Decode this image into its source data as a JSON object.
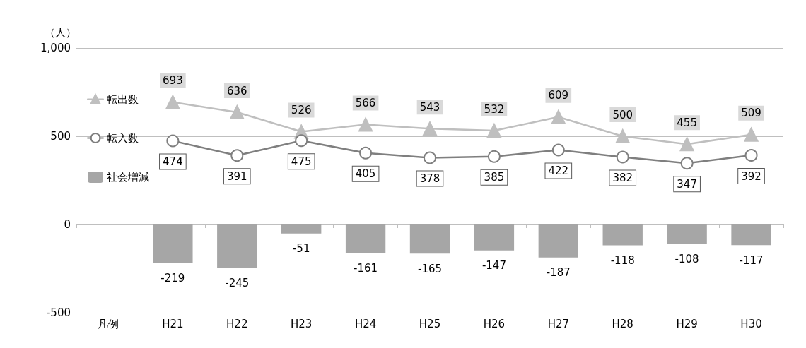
{
  "chart_data": {
    "type": "line",
    "ylabel": "（人）",
    "categories": [
      "凡例",
      "H21",
      "H22",
      "H23",
      "H24",
      "H25",
      "H26",
      "H27",
      "H28",
      "H29",
      "H30"
    ],
    "series": [
      {
        "name": "転出数",
        "marker": "triangle",
        "color": "#bfbfbf",
        "values": [
          null,
          693,
          636,
          526,
          566,
          543,
          532,
          609,
          500,
          455,
          509
        ]
      },
      {
        "name": "転入数",
        "marker": "circle",
        "color": "#7f7f7f",
        "values": [
          null,
          474,
          391,
          475,
          405,
          378,
          385,
          422,
          382,
          347,
          392
        ]
      },
      {
        "name": "社会増減",
        "type": "bar",
        "color": "#a6a6a6",
        "values": [
          null,
          -219,
          -245,
          -51,
          -161,
          -165,
          -147,
          -187,
          -118,
          -108,
          -117
        ]
      }
    ],
    "ylim": [
      -500,
      1000
    ],
    "yticks": [
      -500,
      0,
      500,
      {
        "value": 1000,
        "label": "1,000"
      }
    ],
    "grid": "y",
    "legend": "left",
    "data_labels": true
  }
}
